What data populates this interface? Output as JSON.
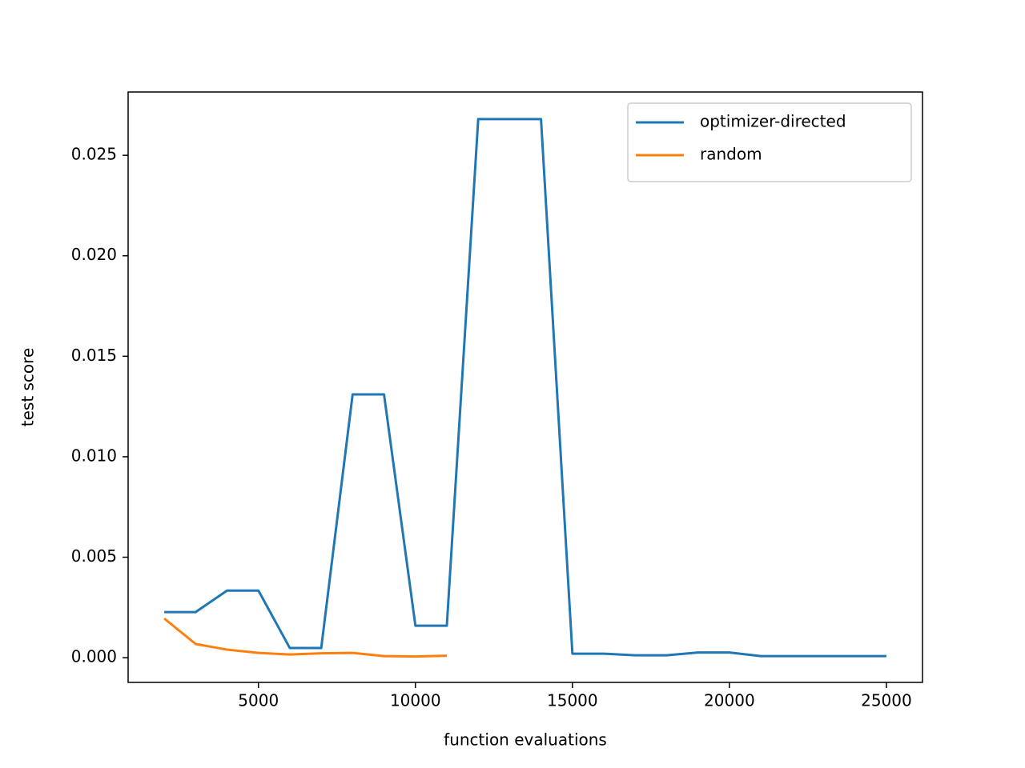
{
  "chart_data": {
    "type": "line",
    "x_label": "function evaluations",
    "y_label": "test score",
    "x": [
      2000,
      3000,
      4000,
      5000,
      6000,
      7000,
      8000,
      9000,
      10000,
      11000,
      12000,
      13000,
      14000,
      15000,
      16000,
      17000,
      18000,
      19000,
      20000,
      21000,
      22000,
      23000,
      24000,
      25000
    ],
    "series": [
      {
        "name": "optimizer-directed",
        "color": "#1f77b4",
        "values": [
          0.00227,
          0.00227,
          0.00334,
          0.00334,
          0.00048,
          0.00048,
          0.0131,
          0.0131,
          0.00159,
          0.00159,
          0.0268,
          0.0268,
          0.0268,
          0.0002,
          0.0002,
          0.00012,
          0.00012,
          0.00026,
          0.00026,
          8e-05,
          8e-05,
          8e-05,
          8e-05,
          8e-05
        ]
      },
      {
        "name": "random",
        "color": "#ff7f0e",
        "values": [
          0.00195,
          0.00068,
          0.0004,
          0.00024,
          0.00016,
          0.00022,
          0.00024,
          8e-05,
          6e-05,
          0.0001,
          null,
          null,
          null,
          null,
          null,
          null,
          null,
          null,
          null,
          null,
          null,
          null,
          null,
          null
        ]
      }
    ],
    "xlim": [
      850,
      26150
    ],
    "ylim": [
      -0.00123,
      0.02815
    ],
    "xticks": [
      5000,
      10000,
      15000,
      20000,
      25000
    ],
    "yticks": [
      {
        "value": 0,
        "label": "0.000"
      },
      {
        "value": 0.005,
        "label": "0.005"
      },
      {
        "value": 0.01,
        "label": "0.010"
      },
      {
        "value": 0.015,
        "label": "0.015"
      },
      {
        "value": 0.02,
        "label": "0.020"
      },
      {
        "value": 0.025,
        "label": "0.025"
      }
    ],
    "legend": "upper right",
    "grid": false
  }
}
